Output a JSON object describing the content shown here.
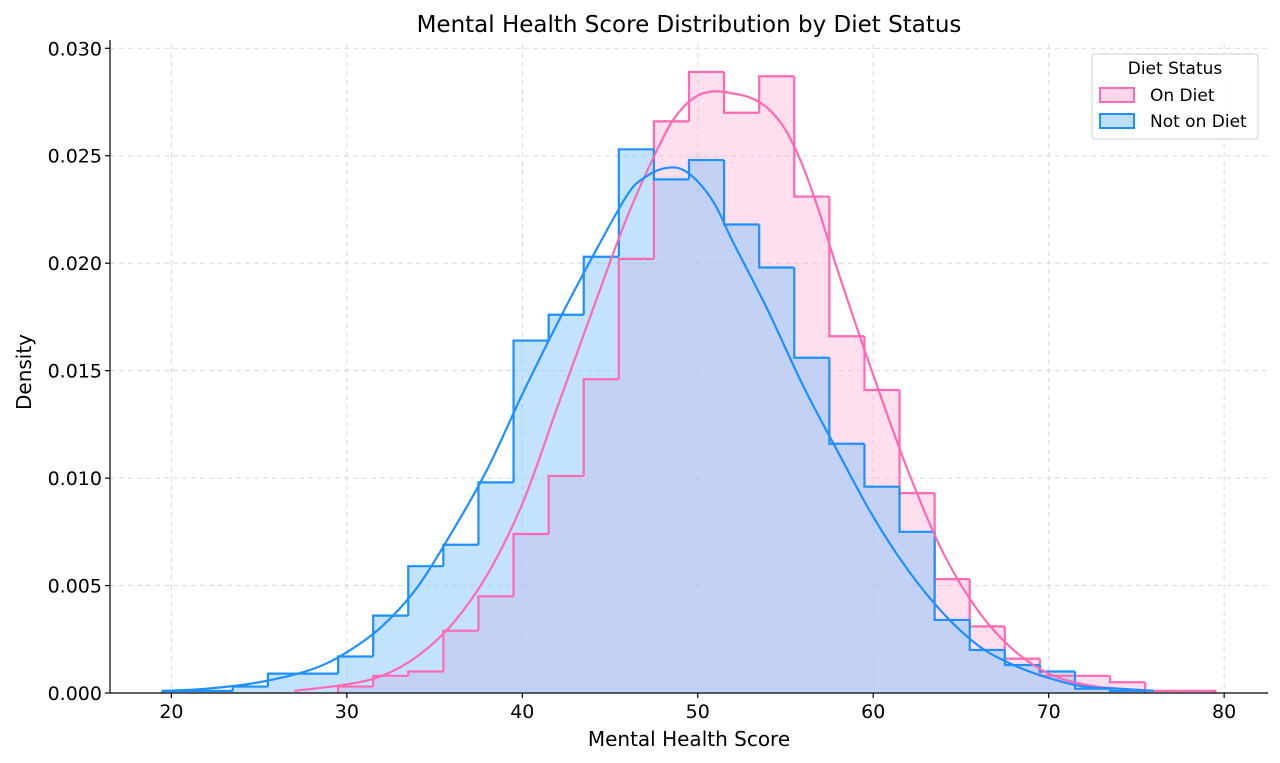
{
  "colors": {
    "on_diet": "#ff69b4",
    "on_diet_fill": "#ffb6d9",
    "not_on_diet": "#1e90ff",
    "not_on_diet_fill": "#87c5fa",
    "grid": "#d8d8d8"
  },
  "chart_data": {
    "type": "histogram",
    "title": "Mental Health Score Distribution by Diet Status",
    "xlabel": "Mental Health Score",
    "ylabel": "Density",
    "xlim": [
      16.5,
      82.5
    ],
    "ylim": [
      0,
      0.0302
    ],
    "x_ticks": [
      20,
      30,
      40,
      50,
      60,
      70,
      80
    ],
    "x_tick_labels": [
      "20",
      "30",
      "40",
      "50",
      "60",
      "70",
      "80"
    ],
    "y_ticks": [
      0,
      0.005,
      0.01,
      0.015,
      0.02,
      0.025,
      0.03
    ],
    "y_tick_labels": [
      "0.000",
      "0.005",
      "0.010",
      "0.015",
      "0.020",
      "0.025",
      "0.030"
    ],
    "grid": true,
    "legend": {
      "title": "Diet Status",
      "placement": "top-right",
      "entries": [
        "On Diet",
        "Not on Diet"
      ]
    },
    "series": [
      {
        "name": "On Diet",
        "color_key": "on_diet",
        "bin_edges": [
          29.5,
          31.5,
          33.5,
          35.5,
          37.5,
          39.5,
          41.5,
          43.5,
          45.5,
          47.5,
          49.5,
          51.5,
          53.5,
          55.5,
          57.5,
          59.5,
          61.5,
          63.5,
          65.5,
          67.5,
          69.5,
          71.5,
          73.5,
          75.5,
          77.5,
          79.5
        ],
        "density": [
          0.0003,
          0.0008,
          0.001,
          0.0029,
          0.0045,
          0.0074,
          0.0101,
          0.0146,
          0.0202,
          0.0266,
          0.0289,
          0.027,
          0.0287,
          0.0231,
          0.0166,
          0.0141,
          0.0093,
          0.0053,
          0.0031,
          0.0016,
          0.0008,
          0.0008,
          0.0005,
          0.0001,
          0.0001
        ],
        "kde_x": [
          27,
          30,
          32,
          34,
          36,
          38,
          40,
          42,
          44,
          46,
          48,
          49,
          50,
          51,
          52,
          53,
          54,
          55,
          56,
          57,
          58,
          60,
          62,
          64,
          66,
          68,
          70,
          72,
          74,
          76
        ],
        "kde_y": [
          0.0001,
          0.0004,
          0.0008,
          0.0017,
          0.0032,
          0.0055,
          0.0088,
          0.0133,
          0.0178,
          0.0222,
          0.0258,
          0.0271,
          0.0278,
          0.028,
          0.0279,
          0.0277,
          0.0272,
          0.0262,
          0.0245,
          0.0222,
          0.0196,
          0.0148,
          0.0103,
          0.0065,
          0.0038,
          0.002,
          0.0009,
          0.0004,
          0.0002,
          0.0001
        ]
      },
      {
        "name": "Not on Diet",
        "color_key": "not_on_diet",
        "bin_edges": [
          19.5,
          21.5,
          23.5,
          25.5,
          27.5,
          29.5,
          31.5,
          33.5,
          35.5,
          37.5,
          39.5,
          41.5,
          43.5,
          45.5,
          47.5,
          49.5,
          51.5,
          53.5,
          55.5,
          57.5,
          59.5,
          61.5,
          63.5,
          65.5,
          67.5,
          69.5,
          71.5,
          73.5,
          75.5
        ],
        "density": [
          0.0001,
          0.0001,
          0.0003,
          0.0009,
          0.0009,
          0.0017,
          0.0036,
          0.0059,
          0.0069,
          0.0098,
          0.0164,
          0.0176,
          0.0203,
          0.0253,
          0.0239,
          0.0248,
          0.0218,
          0.0198,
          0.0156,
          0.0116,
          0.0096,
          0.0075,
          0.0034,
          0.002,
          0.0013,
          0.001,
          0.0002,
          0.0001
        ],
        "kde_x": [
          19.5,
          22,
          25,
          28,
          30,
          32,
          34,
          36,
          38,
          40,
          42,
          44,
          46,
          47,
          48,
          49,
          50,
          51,
          52,
          54,
          56,
          58,
          60,
          62,
          64,
          66,
          68,
          70,
          72,
          74,
          76
        ],
        "kde_y": [
          0.0001,
          0.0002,
          0.0005,
          0.0011,
          0.0019,
          0.0031,
          0.0049,
          0.0075,
          0.0104,
          0.0139,
          0.0172,
          0.0203,
          0.0232,
          0.024,
          0.0244,
          0.0244,
          0.0238,
          0.0227,
          0.021,
          0.0178,
          0.0143,
          0.0112,
          0.0082,
          0.0057,
          0.0037,
          0.0022,
          0.0013,
          0.0007,
          0.0003,
          0.0002,
          0.0001
        ]
      }
    ]
  }
}
